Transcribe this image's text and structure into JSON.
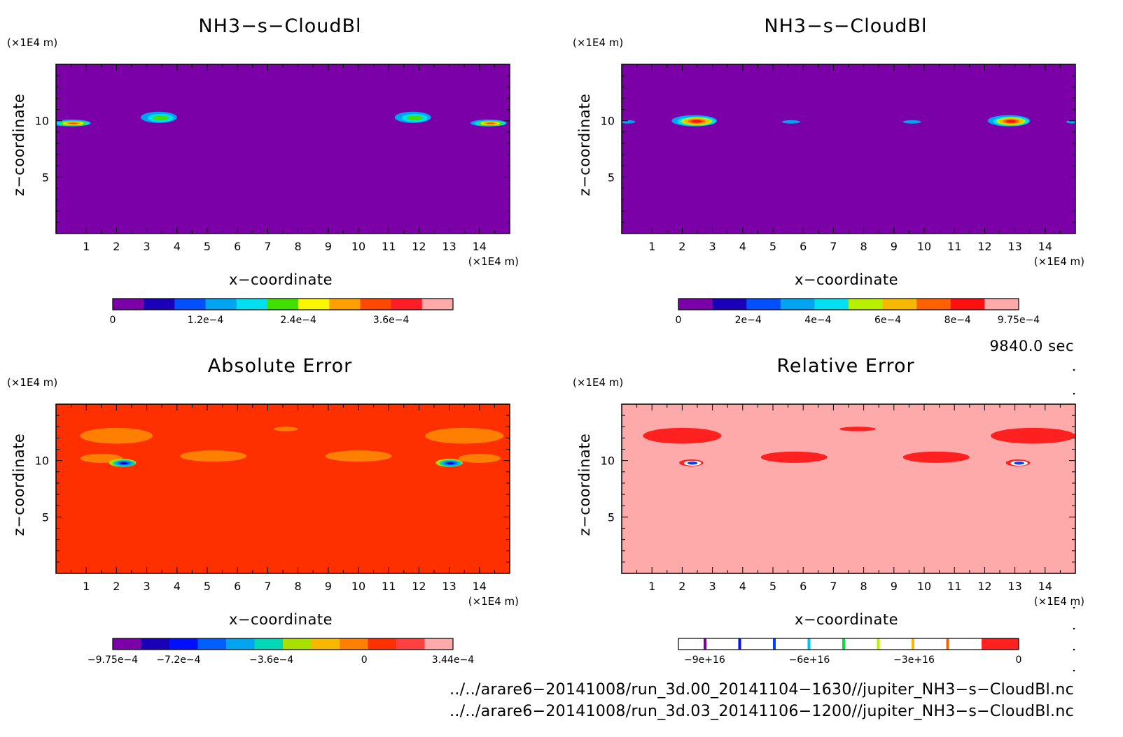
{
  "chart_data": [
    {
      "type": "heatmap",
      "title": "NH3−s−CloudBl",
      "xlabel": "x−coordinate",
      "ylabel": "z−coordinate",
      "x_unit": "(×1E4 m)",
      "y_unit": "(×1E4 m)",
      "xlim": [
        0,
        15
      ],
      "ylim": [
        0,
        15
      ],
      "x_ticks": [
        "1",
        "2",
        "3",
        "4",
        "5",
        "6",
        "7",
        "8",
        "9",
        "10",
        "11",
        "12",
        "13",
        "14"
      ],
      "y_ticks": [
        "5",
        "10"
      ],
      "background_color": "#7b00a8",
      "colorbar": {
        "colors": [
          "#7b00a8",
          "#1a00b8",
          "#0050ff",
          "#00a4f0",
          "#00e0f0",
          "#40e000",
          "#f8f800",
          "#ffa000",
          "#ff4800",
          "#ff1e28",
          "#ffaaaa"
        ],
        "tick_labels": [
          "0",
          "1.2e−4",
          "2.4e−4",
          "3.6e−4"
        ],
        "tick_values": [
          0,
          0.00012,
          0.00024,
          0.00036
        ],
        "range": [
          0,
          0.00044
        ]
      },
      "features": [
        {
          "x": 0.5,
          "z": 9.8,
          "w": 1.3,
          "h": 0.6,
          "level": 8
        },
        {
          "x": 3.4,
          "z": 10.3,
          "w": 1.2,
          "h": 1.0,
          "level": 5
        },
        {
          "x": 11.8,
          "z": 10.3,
          "w": 1.2,
          "h": 1.0,
          "level": 5
        },
        {
          "x": 14.3,
          "z": 9.8,
          "w": 1.2,
          "h": 0.6,
          "level": 8
        }
      ]
    },
    {
      "type": "heatmap",
      "title": "NH3−s−CloudBl",
      "xlabel": "x−coordinate",
      "ylabel": "z−coordinate",
      "x_unit": "(×1E4 m)",
      "y_unit": "(×1E4 m)",
      "xlim": [
        0,
        15
      ],
      "ylim": [
        0,
        15
      ],
      "x_ticks": [
        "1",
        "2",
        "3",
        "4",
        "5",
        "6",
        "7",
        "8",
        "9",
        "10",
        "11",
        "12",
        "13",
        "14"
      ],
      "y_ticks": [
        "5",
        "10"
      ],
      "background_color": "#7b00a8",
      "colorbar": {
        "colors": [
          "#7b00a8",
          "#1a00b8",
          "#0050ff",
          "#00a4f0",
          "#00e0f0",
          "#b8f000",
          "#f8b800",
          "#ff6000",
          "#ff1010",
          "#ffaaaa"
        ],
        "tick_labels": [
          "0",
          "2e−4",
          "4e−4",
          "6e−4",
          "8e−4",
          "9.75e−4"
        ],
        "tick_values": [
          0,
          0.0002,
          0.0004,
          0.0006,
          0.0008,
          0.000975
        ],
        "range": [
          0,
          0.000975
        ]
      },
      "features": [
        {
          "x": 2.4,
          "z": 10.0,
          "w": 1.5,
          "h": 1.0,
          "level": 8
        },
        {
          "x": 5.6,
          "z": 9.9,
          "w": 0.6,
          "h": 0.3,
          "level": 3
        },
        {
          "x": 9.6,
          "z": 9.9,
          "w": 0.6,
          "h": 0.3,
          "level": 3
        },
        {
          "x": 12.8,
          "z": 10.0,
          "w": 1.4,
          "h": 1.0,
          "level": 8
        },
        {
          "x": 0.2,
          "z": 9.9,
          "w": 0.5,
          "h": 0.3,
          "level": 3
        },
        {
          "x": 14.9,
          "z": 9.9,
          "w": 0.4,
          "h": 0.3,
          "level": 3
        }
      ]
    },
    {
      "type": "heatmap",
      "title": "Absolute Error",
      "xlabel": "x−coordinate",
      "ylabel": "z−coordinate",
      "x_unit": "(×1E4 m)",
      "y_unit": "(×1E4 m)",
      "xlim": [
        0,
        15
      ],
      "ylim": [
        0,
        15
      ],
      "x_ticks": [
        "1",
        "2",
        "3",
        "4",
        "5",
        "6",
        "7",
        "8",
        "9",
        "10",
        "11",
        "12",
        "13",
        "14"
      ],
      "y_ticks": [
        "5",
        "10"
      ],
      "background_color": "#ff3000",
      "colorbar": {
        "colors": [
          "#7b00a8",
          "#1a00b8",
          "#0010ff",
          "#0060ff",
          "#00a4f0",
          "#00d8b8",
          "#a8e000",
          "#f8b800",
          "#ff8000",
          "#ff3000",
          "#ff4040",
          "#ffaaaa"
        ],
        "tick_labels": [
          "−9.75e−4",
          "−7.2e−4",
          "−3.6e−4",
          "0",
          "3.44e−4"
        ],
        "tick_values": [
          -0.000975,
          -0.00072,
          -0.00036,
          0,
          0.000344
        ],
        "range": [
          -0.000975,
          0.000344
        ]
      },
      "features": [
        {
          "x": 2.0,
          "z": 12.2,
          "w": 2.4,
          "h": 1.4,
          "level": 8
        },
        {
          "x": 1.5,
          "z": 10.2,
          "w": 1.4,
          "h": 0.8,
          "level": 8
        },
        {
          "x": 5.2,
          "z": 10.4,
          "w": 2.2,
          "h": 1.0,
          "level": 8
        },
        {
          "x": 7.6,
          "z": 12.8,
          "w": 0.8,
          "h": 0.4,
          "level": 8
        },
        {
          "x": 10.0,
          "z": 10.4,
          "w": 2.2,
          "h": 1.0,
          "level": 8
        },
        {
          "x": 13.5,
          "z": 12.2,
          "w": 2.6,
          "h": 1.4,
          "level": 8
        },
        {
          "x": 14.0,
          "z": 10.2,
          "w": 1.4,
          "h": 0.8,
          "level": 8
        },
        {
          "x": 2.2,
          "z": 9.8,
          "w": 0.9,
          "h": 0.7,
          "level": 3
        },
        {
          "x": 13.0,
          "z": 9.8,
          "w": 0.9,
          "h": 0.7,
          "level": 3
        }
      ]
    },
    {
      "type": "heatmap",
      "title": "Relative Error",
      "xlabel": "x−coordinate",
      "ylabel": "z−coordinate",
      "x_unit": "(×1E4 m)",
      "y_unit": "(×1E4 m)",
      "xlim": [
        0,
        15
      ],
      "ylim": [
        0,
        15
      ],
      "x_ticks": [
        "1",
        "2",
        "3",
        "4",
        "5",
        "6",
        "7",
        "8",
        "9",
        "10",
        "11",
        "12",
        "13",
        "14"
      ],
      "y_ticks": [
        "5",
        "10"
      ],
      "background_color": "#ffaaaa",
      "colorbar": {
        "colors": [
          "#ffffff",
          "#ff2020"
        ],
        "line_colors": [
          "#7b00a8",
          "#0010ff",
          "#0040ff",
          "#00c0f0",
          "#00e040",
          "#b8f000",
          "#f8b800",
          "#ff6000"
        ],
        "tick_labels": [
          "−9e+16",
          "−6e+16",
          "−3e+16",
          "0"
        ],
        "tick_values": [
          -9e+16,
          -6e+16,
          -3e+16,
          0
        ],
        "range": [
          -9.75e+16,
          0
        ]
      },
      "features": [
        {
          "x": 2.0,
          "z": 12.2,
          "w": 2.6,
          "h": 1.4,
          "level": 1
        },
        {
          "x": 5.7,
          "z": 10.3,
          "w": 2.2,
          "h": 1.0,
          "level": 1
        },
        {
          "x": 7.8,
          "z": 12.8,
          "w": 1.2,
          "h": 0.4,
          "level": 1
        },
        {
          "x": 10.4,
          "z": 10.3,
          "w": 2.2,
          "h": 1.0,
          "level": 1
        },
        {
          "x": 13.6,
          "z": 12.2,
          "w": 2.8,
          "h": 1.4,
          "level": 1
        },
        {
          "x": 2.3,
          "z": 9.8,
          "w": 0.8,
          "h": 0.6,
          "level": 2
        },
        {
          "x": 13.1,
          "z": 9.8,
          "w": 0.8,
          "h": 0.6,
          "level": 2
        }
      ]
    }
  ],
  "time_label": "9840.0 sec",
  "footer": {
    "file1": "../../arare6−20141008/run_3d.00_20141104−1630//jupiter_NH3−s−CloudBl.nc",
    "file2": "../../arare6−20141008/run_3d.03_20141106−1200//jupiter_NH3−s−CloudBl.nc"
  }
}
